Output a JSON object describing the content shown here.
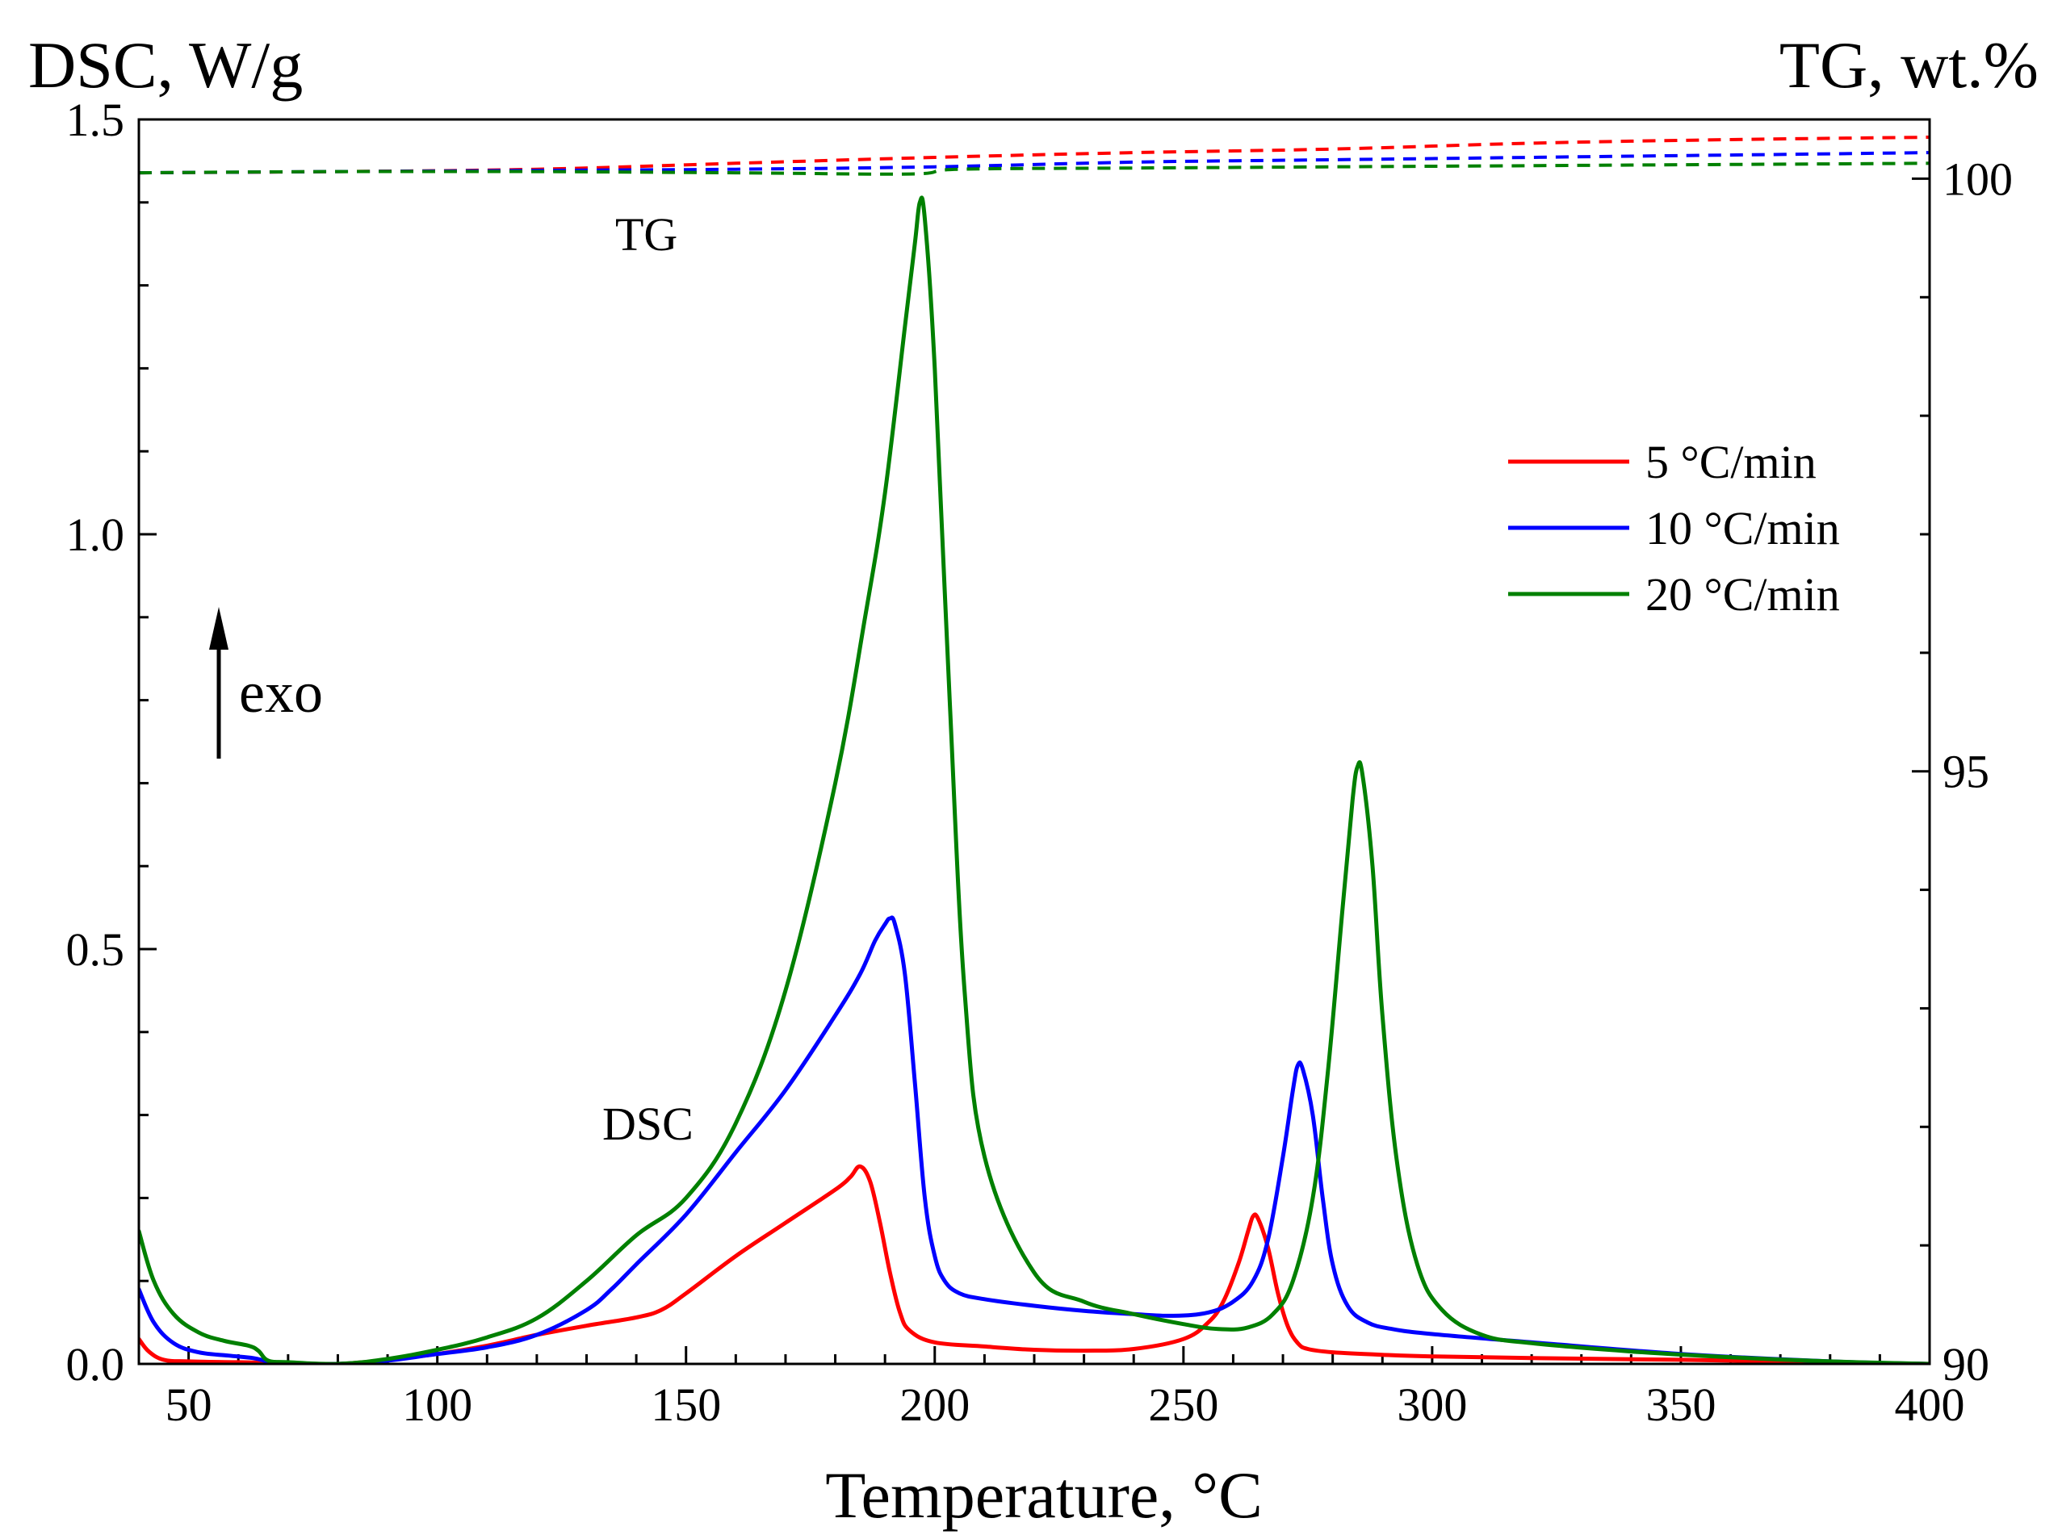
{
  "chart_data": {
    "type": "line",
    "title": "",
    "xlabel": "Temperature, °C",
    "ylabel_left": "DSC, W/g",
    "ylabel_right": "TG, wt.%",
    "xlim": [
      40,
      400
    ],
    "ylim_left": [
      0,
      1.5
    ],
    "ylim_right": [
      90,
      100.5
    ],
    "xticks": [
      50,
      100,
      150,
      200,
      250,
      300,
      350,
      400
    ],
    "yticks_left": [
      0.0,
      0.5,
      1.0,
      1.5
    ],
    "yticks_left_labels": [
      "0.0",
      "0.5",
      "1.0",
      "1.5"
    ],
    "yticks_right": [
      90,
      95,
      100
    ],
    "yticks_right_labels": [
      "90",
      "95",
      "100"
    ],
    "grid": false,
    "legend_position": "right",
    "annotations": {
      "tg_label": "TG",
      "dsc_label": "DSC",
      "exo_label": "exo"
    },
    "colors": {
      "5": "#ff0000",
      "10": "#0000ff",
      "20": "#008000"
    },
    "legend": [
      {
        "name": "5 °C/min",
        "color": "#ff0000"
      },
      {
        "name": "10 °C/min",
        "color": "#0000ff"
      },
      {
        "name": "20 °C/min",
        "color": "#008000"
      }
    ],
    "series": [
      {
        "name": "5 °C/min",
        "kind": "DSC",
        "color": "#ff0000",
        "axis": "left",
        "x": [
          40,
          42,
          45,
          50,
          60,
          70,
          80,
          90,
          100,
          110,
          120,
          130,
          140,
          145,
          150,
          160,
          170,
          180,
          183,
          185,
          187,
          189,
          191,
          193,
          195,
          200,
          210,
          220,
          230,
          240,
          250,
          255,
          258,
          261,
          263,
          264,
          265,
          267,
          269,
          271,
          273,
          275,
          280,
          290,
          300,
          320,
          350,
          380,
          400
        ],
        "y": [
          0.03,
          0.015,
          0.005,
          0.003,
          0.002,
          0.001,
          0.0,
          0.005,
          0.012,
          0.022,
          0.035,
          0.046,
          0.056,
          0.065,
          0.085,
          0.13,
          0.17,
          0.21,
          0.225,
          0.238,
          0.22,
          0.17,
          0.11,
          0.062,
          0.04,
          0.026,
          0.021,
          0.017,
          0.016,
          0.018,
          0.03,
          0.05,
          0.075,
          0.12,
          0.16,
          0.178,
          0.175,
          0.14,
          0.085,
          0.045,
          0.025,
          0.018,
          0.014,
          0.011,
          0.009,
          0.007,
          0.005,
          0.002,
          0.0
        ]
      },
      {
        "name": "10 °C/min",
        "kind": "DSC",
        "color": "#0000ff",
        "axis": "left",
        "x": [
          40,
          43,
          47,
          52,
          58,
          63,
          66,
          70,
          80,
          90,
          100,
          110,
          120,
          130,
          135,
          140,
          150,
          160,
          170,
          180,
          185,
          188,
          190,
          191,
          192,
          194,
          196,
          198,
          200,
          202,
          205,
          210,
          220,
          230,
          240,
          248,
          255,
          260,
          264,
          267,
          270,
          272,
          273,
          274,
          276,
          278,
          280,
          283,
          287,
          292,
          300,
          320,
          350,
          380,
          400
        ],
        "y": [
          0.09,
          0.05,
          0.025,
          0.014,
          0.01,
          0.007,
          0.003,
          0.001,
          0.0,
          0.004,
          0.012,
          0.02,
          0.035,
          0.065,
          0.09,
          0.12,
          0.18,
          0.255,
          0.33,
          0.42,
          0.47,
          0.51,
          0.53,
          0.537,
          0.53,
          0.47,
          0.34,
          0.2,
          0.13,
          0.1,
          0.085,
          0.078,
          0.07,
          0.064,
          0.06,
          0.058,
          0.062,
          0.075,
          0.1,
          0.15,
          0.25,
          0.33,
          0.36,
          0.355,
          0.3,
          0.2,
          0.12,
          0.07,
          0.05,
          0.042,
          0.036,
          0.026,
          0.012,
          0.003,
          0.0
        ]
      },
      {
        "name": "20 °C/min",
        "kind": "DSC",
        "color": "#008000",
        "axis": "left",
        "x": [
          40,
          43,
          47,
          52,
          57,
          62,
          64,
          66,
          70,
          80,
          90,
          100,
          110,
          120,
          130,
          140,
          150,
          160,
          170,
          180,
          186,
          190,
          194,
          196,
          197,
          198,
          200,
          203,
          206,
          210,
          220,
          230,
          240,
          250,
          257,
          263,
          268,
          272,
          276,
          279,
          282,
          284,
          285,
          286,
          288,
          290,
          293,
          297,
          302,
          310,
          320,
          340,
          360,
          380,
          400
        ],
        "y": [
          0.16,
          0.1,
          0.06,
          0.038,
          0.028,
          0.022,
          0.016,
          0.004,
          0.002,
          0.0,
          0.006,
          0.017,
          0.032,
          0.055,
          0.1,
          0.155,
          0.2,
          0.29,
          0.45,
          0.7,
          0.9,
          1.05,
          1.25,
          1.35,
          1.4,
          1.38,
          1.2,
          0.8,
          0.45,
          0.25,
          0.11,
          0.075,
          0.06,
          0.048,
          0.042,
          0.044,
          0.06,
          0.1,
          0.2,
          0.35,
          0.55,
          0.68,
          0.72,
          0.71,
          0.6,
          0.42,
          0.24,
          0.12,
          0.065,
          0.035,
          0.025,
          0.015,
          0.008,
          0.003,
          0.0
        ]
      },
      {
        "name": "5 °C/min",
        "kind": "TG",
        "color": "#ff0000",
        "axis": "right",
        "dashed": true,
        "x": [
          40,
          80,
          120,
          160,
          200,
          240,
          280,
          320,
          360,
          400
        ],
        "y": [
          100.05,
          100.06,
          100.08,
          100.13,
          100.18,
          100.22,
          100.25,
          100.3,
          100.33,
          100.35
        ]
      },
      {
        "name": "10 °C/min",
        "kind": "TG",
        "color": "#0000ff",
        "axis": "right",
        "dashed": true,
        "x": [
          40,
          80,
          120,
          160,
          200,
          240,
          280,
          320,
          360,
          400
        ],
        "y": [
          100.05,
          100.06,
          100.07,
          100.08,
          100.1,
          100.14,
          100.16,
          100.18,
          100.2,
          100.22
        ]
      },
      {
        "name": "20 °C/min",
        "kind": "TG",
        "color": "#008000",
        "axis": "right",
        "dashed": true,
        "x": [
          40,
          80,
          120,
          160,
          195,
          205,
          240,
          280,
          320,
          360,
          400
        ],
        "y": [
          100.05,
          100.06,
          100.06,
          100.05,
          100.04,
          100.08,
          100.09,
          100.1,
          100.11,
          100.12,
          100.13
        ]
      }
    ]
  }
}
